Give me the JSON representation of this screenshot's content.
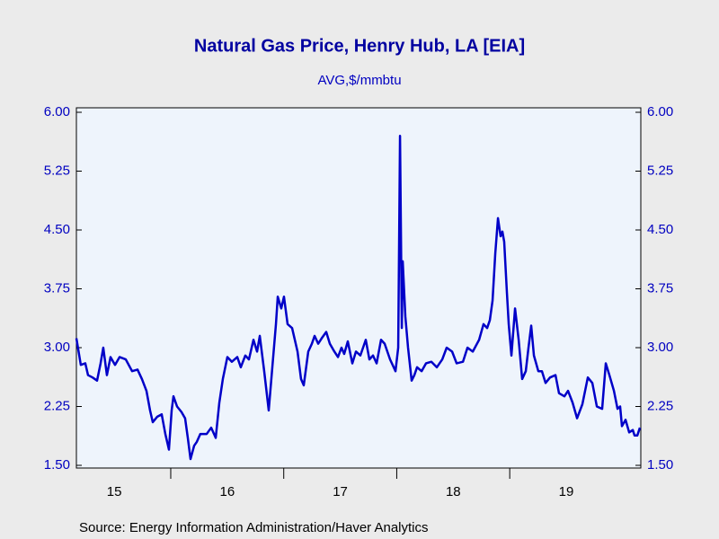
{
  "chart_data": {
    "type": "line",
    "title": "Natural Gas Price, Henry Hub, LA [EIA]",
    "subtitle": "AVG,$/mmbtu",
    "source": "Source:  Energy Information Administration/Haver Analytics",
    "color": "#0000c8",
    "ylim": [
      1.5,
      6.0
    ],
    "yticks": [
      {
        "value": 1.5,
        "label": "1.50"
      },
      {
        "value": 2.25,
        "label": "2.25"
      },
      {
        "value": 3.0,
        "label": "3.00"
      },
      {
        "value": 3.75,
        "label": "3.75"
      },
      {
        "value": 4.5,
        "label": "4.50"
      },
      {
        "value": 5.25,
        "label": "5.25"
      },
      {
        "value": 6.0,
        "label": "6.00"
      }
    ],
    "xlim": [
      2015.165,
      2020.16
    ],
    "xticks": [
      {
        "value": 2015.5,
        "label": "15"
      },
      {
        "value": 2016.5,
        "label": "16"
      },
      {
        "value": 2017.5,
        "label": "17"
      },
      {
        "value": 2018.5,
        "label": "18"
      },
      {
        "value": 2019.5,
        "label": "19"
      }
    ],
    "xtick_marks": [
      2016,
      2017,
      2018,
      2019
    ],
    "x": [
      2015.165,
      2015.204,
      2015.244,
      2015.268,
      2015.308,
      2015.348,
      2015.379,
      2015.403,
      2015.435,
      2015.467,
      2015.507,
      2015.547,
      2015.602,
      2015.658,
      2015.706,
      2015.745,
      2015.785,
      2015.817,
      2015.841,
      2015.881,
      2015.92,
      2015.952,
      2015.984,
      2016.008,
      2016.024,
      2016.056,
      2016.095,
      2016.127,
      2016.151,
      2016.175,
      2016.207,
      2016.231,
      2016.262,
      2016.318,
      2016.358,
      2016.398,
      2016.43,
      2016.461,
      2016.501,
      2016.541,
      2016.589,
      2016.62,
      2016.66,
      2016.692,
      2016.732,
      2016.764,
      2016.788,
      2016.827,
      2016.867,
      2016.899,
      2016.931,
      2016.947,
      2016.978,
      2017.002,
      2017.034,
      2017.074,
      2017.122,
      2017.153,
      2017.177,
      2017.217,
      2017.249,
      2017.273,
      2017.305,
      2017.336,
      2017.376,
      2017.408,
      2017.448,
      2017.48,
      2017.511,
      2017.535,
      2017.567,
      2017.607,
      2017.639,
      2017.678,
      2017.726,
      2017.758,
      2017.79,
      2017.822,
      2017.861,
      2017.893,
      2017.941,
      2017.989,
      2018.013,
      2018.029,
      2018.045,
      2018.053,
      2018.076,
      2018.1,
      2018.132,
      2018.156,
      2018.18,
      2018.22,
      2018.259,
      2018.307,
      2018.355,
      2018.403,
      2018.442,
      2018.49,
      2018.53,
      2018.586,
      2018.626,
      2018.673,
      2018.729,
      2018.768,
      2018.8,
      2018.824,
      2018.848,
      2018.872,
      2018.896,
      2018.919,
      2018.935,
      2018.951,
      2018.975,
      2018.991,
      2019.015,
      2019.047,
      2019.079,
      2019.11,
      2019.142,
      2019.166,
      2019.19,
      2019.214,
      2019.253,
      2019.285,
      2019.317,
      2019.357,
      2019.405,
      2019.436,
      2019.484,
      2019.516,
      2019.556,
      2019.596,
      2019.643,
      2019.691,
      2019.731,
      2019.771,
      2019.818,
      2019.85,
      2019.882,
      2019.922,
      2019.954,
      2019.977,
      2019.993,
      2020.025,
      2020.057,
      2020.089,
      2020.105,
      2020.129,
      2020.152
    ],
    "values": [
      3.12,
      2.78,
      2.8,
      2.65,
      2.62,
      2.58,
      2.8,
      3.0,
      2.65,
      2.88,
      2.78,
      2.88,
      2.85,
      2.7,
      2.72,
      2.6,
      2.45,
      2.2,
      2.05,
      2.12,
      2.15,
      1.9,
      1.7,
      2.2,
      2.38,
      2.25,
      2.18,
      2.1,
      1.85,
      1.58,
      1.75,
      1.8,
      1.9,
      1.9,
      1.98,
      1.85,
      2.3,
      2.6,
      2.88,
      2.82,
      2.88,
      2.75,
      2.9,
      2.85,
      3.1,
      2.95,
      3.15,
      2.7,
      2.2,
      2.75,
      3.3,
      3.65,
      3.5,
      3.65,
      3.3,
      3.25,
      2.95,
      2.6,
      2.52,
      2.95,
      3.05,
      3.15,
      3.05,
      3.12,
      3.2,
      3.05,
      2.95,
      2.88,
      3.0,
      2.92,
      3.08,
      2.8,
      2.95,
      2.9,
      3.1,
      2.85,
      2.9,
      2.8,
      3.1,
      3.05,
      2.85,
      2.7,
      3.0,
      5.7,
      3.25,
      4.1,
      3.4,
      3.0,
      2.58,
      2.65,
      2.75,
      2.7,
      2.8,
      2.82,
      2.75,
      2.85,
      3.0,
      2.95,
      2.8,
      2.82,
      3.0,
      2.95,
      3.1,
      3.3,
      3.25,
      3.35,
      3.6,
      4.2,
      4.65,
      4.42,
      4.48,
      4.35,
      3.7,
      3.3,
      2.9,
      3.5,
      3.1,
      2.6,
      2.7,
      3.0,
      3.28,
      2.9,
      2.7,
      2.7,
      2.55,
      2.62,
      2.65,
      2.42,
      2.38,
      2.45,
      2.3,
      2.1,
      2.28,
      2.62,
      2.55,
      2.25,
      2.22,
      2.8,
      2.65,
      2.45,
      2.22,
      2.25,
      2.0,
      2.08,
      1.92,
      1.95,
      1.88,
      1.88,
      1.98
    ]
  }
}
